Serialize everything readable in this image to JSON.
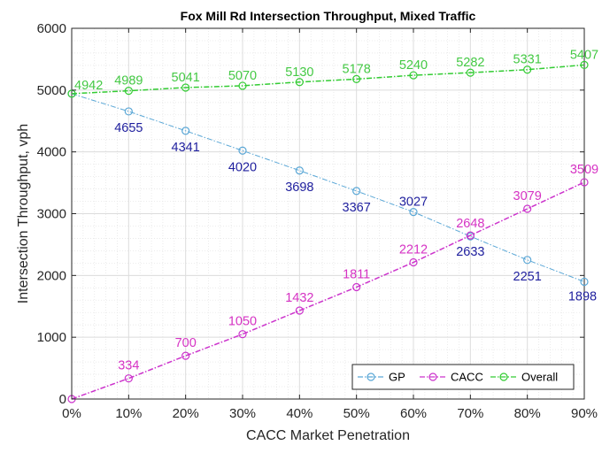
{
  "chart_data": {
    "type": "line",
    "title": "Fox Mill Rd Intersection Throughput, Mixed Traffic",
    "xlabel": "CACC Market Penetration",
    "ylabel": "Intersection Throughput, vph",
    "categories": [
      "0%",
      "10%",
      "20%",
      "30%",
      "40%",
      "50%",
      "60%",
      "70%",
      "80%",
      "90%"
    ],
    "x_values": [
      0,
      10,
      20,
      30,
      40,
      50,
      60,
      70,
      80,
      90
    ],
    "xlim": [
      0,
      90
    ],
    "ylim": [
      0,
      6000
    ],
    "yticks": [
      0,
      1000,
      2000,
      3000,
      4000,
      5000,
      6000
    ],
    "grid": true,
    "minor_grid": true,
    "legend_position": "bottom-right",
    "legend_orientation": "horizontal",
    "series": [
      {
        "name": "GP",
        "color": "#5aa7d6",
        "label_color": "#1f1f9e",
        "line_style": "dash-dot",
        "marker": "open-circle",
        "values": [
          4942,
          4655,
          4341,
          4020,
          3698,
          3367,
          3027,
          2633,
          2251,
          1898
        ],
        "labels": [
          "",
          "4655",
          "4341",
          "4020",
          "3698",
          "3367",
          "3027",
          "2633",
          "2251",
          "1898"
        ]
      },
      {
        "name": "CACC",
        "color": "#cc33cc",
        "label_color": "#d633c4",
        "line_style": "dash-dot",
        "marker": "open-circle",
        "values": [
          0,
          334,
          700,
          1050,
          1432,
          1811,
          2212,
          2648,
          3079,
          3509
        ],
        "labels": [
          "",
          "334",
          "700",
          "1050",
          "1432",
          "1811",
          "2212",
          "2648",
          "3079",
          "3509"
        ]
      },
      {
        "name": "Overall",
        "color": "#33cc33",
        "label_color": "#44c944",
        "line_style": "dash-dot",
        "marker": "open-circle",
        "values": [
          4942,
          4989,
          5041,
          5070,
          5130,
          5178,
          5240,
          5282,
          5331,
          5407
        ],
        "labels": [
          "4942",
          "4989",
          "5041",
          "5070",
          "5130",
          "5178",
          "5240",
          "5282",
          "5331",
          "5407"
        ]
      }
    ]
  }
}
